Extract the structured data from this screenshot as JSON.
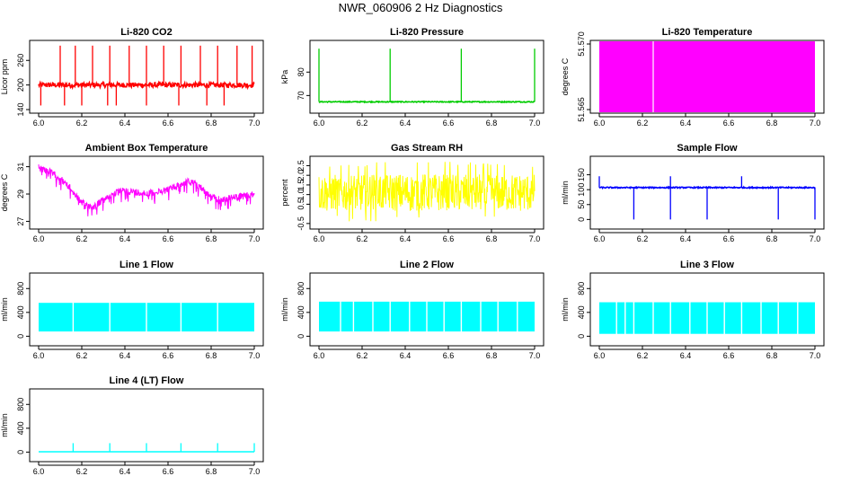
{
  "page_title": "NWR_060906  2 Hz Diagnostics",
  "chart_data": [
    {
      "type": "line",
      "title": "Li-820 CO2",
      "ylabel": "Licor ppm",
      "color": "#ff0000",
      "xlim": [
        6.0,
        7.0
      ],
      "ylim": [
        140,
        300
      ],
      "x_ticks": [
        "6.0",
        "6.2",
        "6.4",
        "6.6",
        "6.8",
        "7.0"
      ],
      "y_ticks": [
        {
          "value": 140,
          "label": "140"
        },
        {
          "value": 200,
          "label": "200"
        },
        {
          "value": 260,
          "label": "260"
        }
      ],
      "series": [
        {
          "baseline": 200,
          "noise": 6,
          "spikes_up": [
            6.1,
            6.17,
            6.25,
            6.33,
            6.42,
            6.5,
            6.58,
            6.66,
            6.75,
            6.83,
            6.92,
            6.99
          ],
          "spike_up_to": 296,
          "spikes_down": [
            6.01,
            6.12,
            6.2,
            6.32,
            6.36,
            6.5,
            6.65,
            6.78,
            6.86
          ],
          "spike_down_to": 150
        }
      ]
    },
    {
      "type": "line",
      "title": "Li-820 Pressure",
      "ylabel": "kPa",
      "color": "#00cc00",
      "xlim": [
        6.0,
        7.0
      ],
      "ylim": [
        64,
        92
      ],
      "x_ticks": [
        "6.0",
        "6.2",
        "6.4",
        "6.6",
        "6.8",
        "7.0"
      ],
      "y_ticks": [
        {
          "value": 70,
          "label": "70"
        },
        {
          "value": 80,
          "label": "80"
        }
      ],
      "series": [
        {
          "baseline": 67.3,
          "noise": 0.2,
          "spikes_up": [
            6.0,
            6.33,
            6.66,
            7.0
          ],
          "spike_up_to": 90
        }
      ]
    },
    {
      "type": "area",
      "title": "Li-820 Temperature",
      "ylabel": "degrees C",
      "color": "#ff00ff",
      "xlim": [
        6.0,
        7.0
      ],
      "ylim": [
        51.57,
        51.565
      ],
      "x_ticks": [
        "6.0",
        "6.2",
        "6.4",
        "6.6",
        "6.8",
        "7.0"
      ],
      "y_ticks": [
        {
          "value": 51.57,
          "label": "51.570"
        },
        {
          "value": 51.565,
          "label": "51.565"
        }
      ],
      "series": [
        {
          "fill": "full",
          "gaps": [
            6.25
          ]
        }
      ]
    },
    {
      "type": "line",
      "title": "Ambient Box Temperature",
      "ylabel": "degrees C",
      "color": "#ff00ff",
      "xlim": [
        6.0,
        7.0
      ],
      "ylim": [
        26.7,
        31.5
      ],
      "x_ticks": [
        "6.0",
        "6.2",
        "6.4",
        "6.6",
        "6.8",
        "7.0"
      ],
      "y_ticks": [
        {
          "value": 27,
          "label": "27"
        },
        {
          "value": 29,
          "label": "29"
        },
        {
          "value": 31,
          "label": "31"
        }
      ],
      "series": [
        {
          "x": [
            6.0,
            6.05,
            6.1,
            6.15,
            6.2,
            6.25,
            6.3,
            6.35,
            6.4,
            6.45,
            6.5,
            6.55,
            6.6,
            6.65,
            6.7,
            6.75,
            6.8,
            6.85,
            6.9,
            6.95,
            7.0
          ],
          "y": [
            31.2,
            30.9,
            30.4,
            29.6,
            28.6,
            28.3,
            28.8,
            29.3,
            29.5,
            29.4,
            29.3,
            29.4,
            29.6,
            29.9,
            30.2,
            29.8,
            29.0,
            28.8,
            29.0,
            29.1,
            29.2
          ],
          "noise": 0.5
        }
      ]
    },
    {
      "type": "line",
      "title": "Gas Stream RH",
      "ylabel": "percent",
      "color": "#ffff00",
      "xlim": [
        6.0,
        7.0
      ],
      "ylim": [
        -0.6,
        2.8
      ],
      "x_ticks": [
        "6.0",
        "6.2",
        "6.4",
        "6.6",
        "6.8",
        "7.0"
      ],
      "y_ticks": [
        {
          "value": -0.5,
          "label": "-0.5"
        },
        {
          "value": 0.5,
          "label": "0.5"
        },
        {
          "value": 1.0,
          "label": "1.0"
        },
        {
          "value": 1.5,
          "label": "1.5"
        },
        {
          "value": 2.0,
          "label": "2.0"
        },
        {
          "value": 2.5,
          "label": "2.5"
        }
      ],
      "series": [
        {
          "band": [
            0.1,
            2.1
          ],
          "extremes": [
            -0.4,
            2.7
          ]
        }
      ]
    },
    {
      "type": "line",
      "title": "Sample Flow",
      "ylabel": "ml/min",
      "color": "#0000ff",
      "xlim": [
        6.0,
        7.0
      ],
      "ylim": [
        -20,
        200
      ],
      "x_ticks": [
        "6.0",
        "6.2",
        "6.4",
        "6.6",
        "6.8",
        "7.0"
      ],
      "y_ticks": [
        {
          "value": 0,
          "label": "0"
        },
        {
          "value": 50,
          "label": "50"
        },
        {
          "value": 100,
          "label": "100"
        },
        {
          "value": 150,
          "label": "150"
        }
      ],
      "series": [
        {
          "baseline": 107,
          "noise": 2,
          "dips": [
            6.16,
            6.33,
            6.5,
            6.83,
            7.0
          ],
          "dip_to": 0,
          "spikes": [
            6.0,
            6.33,
            6.66
          ],
          "spike_to": 145
        }
      ]
    },
    {
      "type": "area",
      "title": "Line 1 Flow",
      "ylabel": "ml/min",
      "color": "#00ffff",
      "xlim": [
        6.0,
        7.0
      ],
      "ylim": [
        -100,
        1000
      ],
      "x_ticks": [
        "6.0",
        "6.2",
        "6.4",
        "6.6",
        "6.8",
        "7.0"
      ],
      "y_ticks": [
        {
          "value": 0,
          "label": "0"
        },
        {
          "value": 400,
          "label": "400"
        },
        {
          "value": 800,
          "label": "800"
        }
      ],
      "series": [
        {
          "band": [
            80,
            560
          ],
          "gaps": [
            6.16,
            6.33,
            6.5,
            6.66,
            6.83
          ]
        }
      ]
    },
    {
      "type": "area",
      "title": "Line 2 Flow",
      "ylabel": "ml/min",
      "color": "#00ffff",
      "xlim": [
        6.0,
        7.0
      ],
      "ylim": [
        -100,
        1000
      ],
      "x_ticks": [
        "6.0",
        "6.2",
        "6.4",
        "6.6",
        "6.8",
        "7.0"
      ],
      "y_ticks": [
        {
          "value": 0,
          "label": "0"
        },
        {
          "value": 400,
          "label": "400"
        },
        {
          "value": 800,
          "label": "800"
        }
      ],
      "series": [
        {
          "band": [
            80,
            580
          ],
          "gaps": [
            6.1,
            6.16,
            6.25,
            6.33,
            6.42,
            6.5,
            6.58,
            6.66,
            6.75,
            6.83,
            6.92
          ]
        }
      ]
    },
    {
      "type": "area",
      "title": "Line 3 Flow",
      "ylabel": "ml/min",
      "color": "#00ffff",
      "xlim": [
        6.0,
        7.0
      ],
      "ylim": [
        -100,
        1000
      ],
      "x_ticks": [
        "6.0",
        "6.2",
        "6.4",
        "6.6",
        "6.8",
        "7.0"
      ],
      "y_ticks": [
        {
          "value": 0,
          "label": "0"
        },
        {
          "value": 400,
          "label": "400"
        },
        {
          "value": 800,
          "label": "800"
        }
      ],
      "series": [
        {
          "band": [
            40,
            570
          ],
          "gaps": [
            6.08,
            6.12,
            6.16,
            6.25,
            6.33,
            6.42,
            6.5,
            6.58,
            6.66,
            6.75,
            6.83,
            6.92
          ]
        }
      ]
    },
    {
      "type": "line",
      "title": "Line 4 (LT) Flow",
      "ylabel": "ml/min",
      "color": "#00ffff",
      "xlim": [
        6.0,
        7.0
      ],
      "ylim": [
        -100,
        1000
      ],
      "x_ticks": [
        "6.0",
        "6.2",
        "6.4",
        "6.6",
        "6.8",
        "7.0"
      ],
      "y_ticks": [
        {
          "value": 0,
          "label": "0"
        },
        {
          "value": 400,
          "label": "400"
        },
        {
          "value": 800,
          "label": "800"
        }
      ],
      "series": [
        {
          "baseline": 5,
          "spikes": [
            6.16,
            6.33,
            6.5,
            6.66,
            6.83,
            7.0
          ],
          "spike_to": 150
        }
      ]
    }
  ]
}
